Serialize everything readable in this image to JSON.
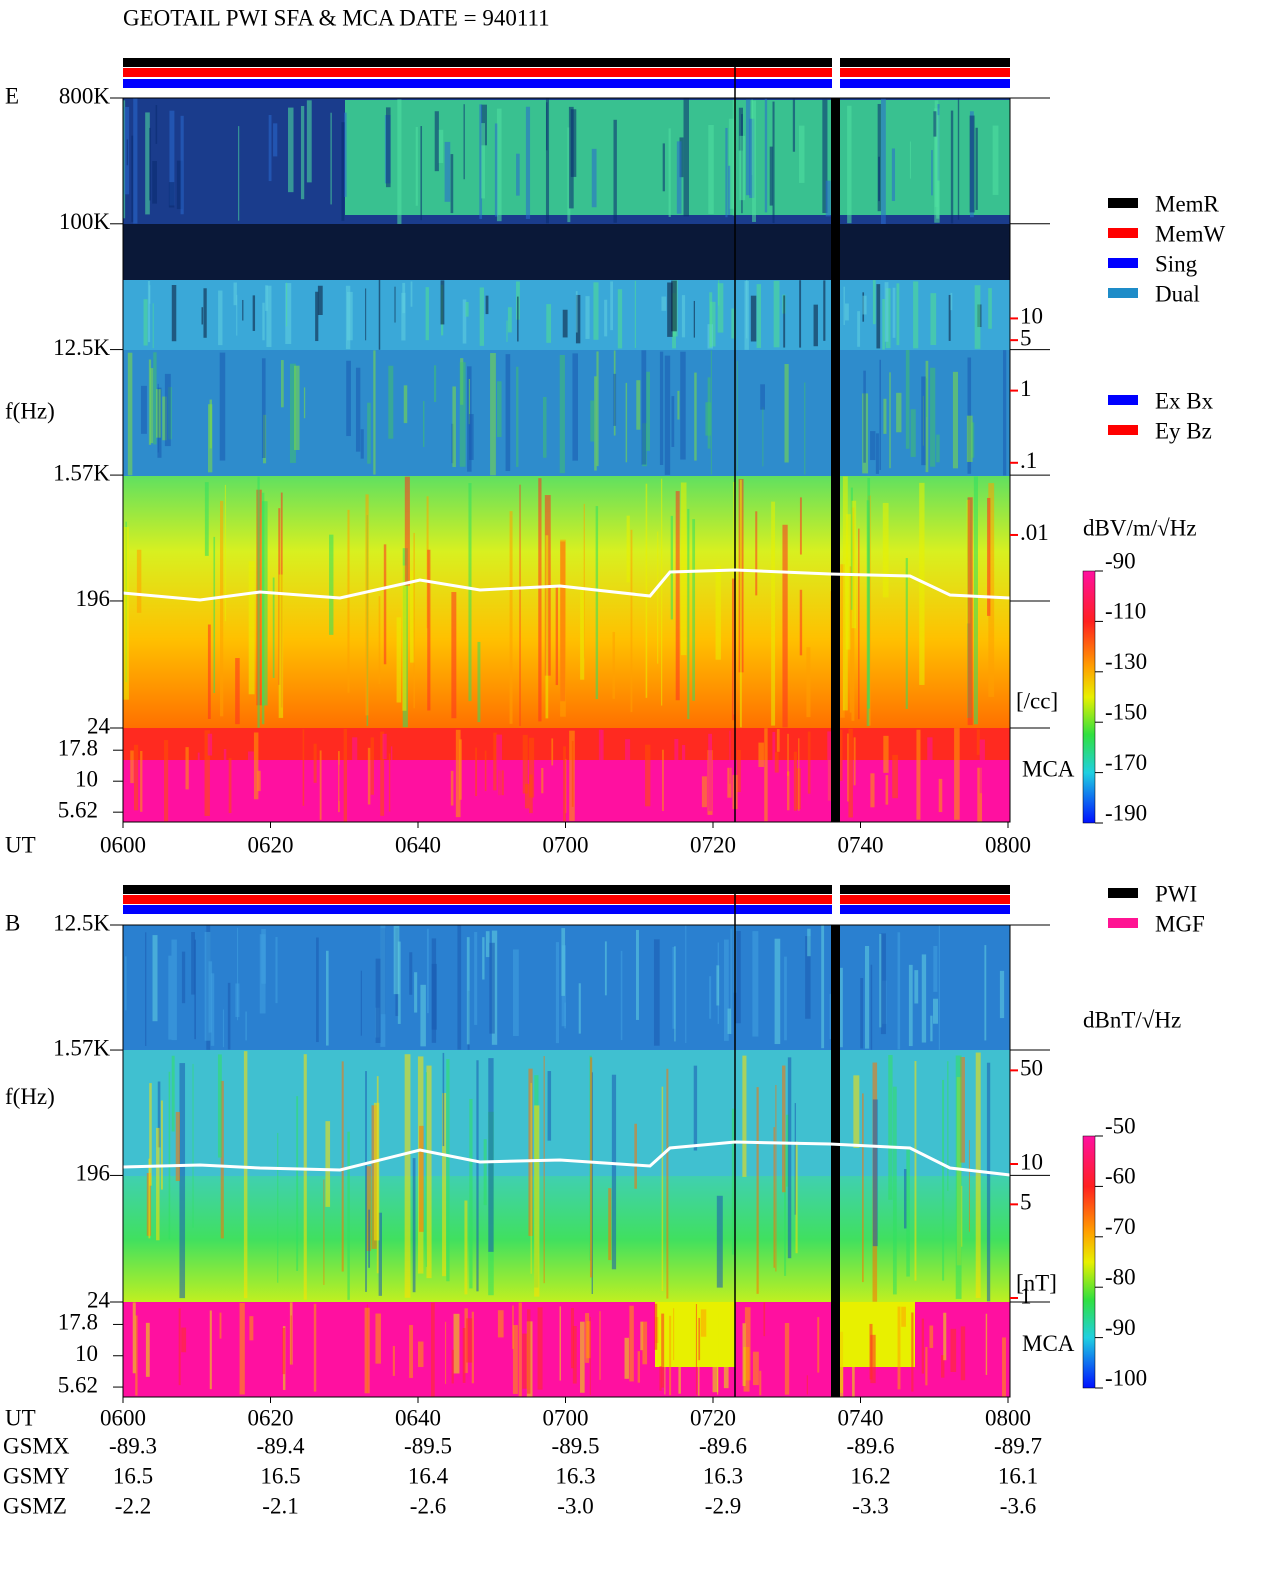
{
  "title": "GEOTAIL   PWI SFA & MCA   DATE = 940111",
  "chart_data": [
    {
      "type": "spectrogram",
      "panel_label": "E",
      "ylabel": "f(Hz)",
      "xlabel": "UT",
      "x_labels": [
        "0600",
        "0620",
        "0640",
        "0700",
        "0720",
        "0740",
        "0800"
      ],
      "yscale": "log",
      "ylim": [
        24,
        800000
      ],
      "yticks": [
        {
          "value": 800000,
          "label": "800K"
        },
        {
          "value": 100000,
          "label": "100K"
        },
        {
          "value": 12500,
          "label": "12.5K"
        },
        {
          "value": 1570,
          "label": "1.57K"
        },
        196,
        24
      ],
      "mca_label": "MCA",
      "mca_ylim": [
        4.68,
        26.9
      ],
      "mca_yticks": [
        17.8,
        10,
        5.62
      ],
      "y2scale": "log",
      "y2lim": [
        0.0045,
        18
      ],
      "y2label": "[/cc]",
      "y2color": "#ff0000",
      "y2ticks": [
        10,
        5,
        1,
        {
          "value": 0.1,
          "label": ".1"
        },
        {
          "value": 0.01,
          "label": ".01"
        }
      ],
      "clabel": "dBV/m/√Hz",
      "clim": [
        -190,
        -90
      ],
      "cticks": [
        -90,
        -110,
        -130,
        -150,
        -170,
        -190
      ],
      "legend": [
        {
          "name": "MemR",
          "color": "#000000"
        },
        {
          "name": "MemW",
          "color": "#ff0000"
        },
        {
          "name": "Sing",
          "color": "#0000ff"
        },
        {
          "name": "Dual",
          "color": "#1e8cc8"
        }
      ],
      "legend2": [
        {
          "name": "Ex Bx",
          "color": "#0000ff"
        },
        {
          "name": "Ey Bz",
          "color": "#ff0000"
        }
      ]
    },
    {
      "type": "spectrogram",
      "panel_label": "B",
      "ylabel": "f(Hz)",
      "xlabel": "UT",
      "x_labels": [
        "0600",
        "0620",
        "0640",
        "0700",
        "0720",
        "0740",
        "0800"
      ],
      "yscale": "log",
      "ylim": [
        24,
        12500
      ],
      "yticks": [
        {
          "value": 12500,
          "label": "12.5K"
        },
        {
          "value": 1570,
          "label": "1.57K"
        },
        196,
        24
      ],
      "mca_label": "MCA",
      "mca_ylim": [
        4.68,
        26.9
      ],
      "mca_yticks": [
        17.8,
        10,
        5.62
      ],
      "y2scale": "log",
      "y2lim": [
        1,
        64
      ],
      "y2label": "[nT]",
      "y2color": "#ff0000",
      "y2ticks": [
        50,
        10,
        5,
        1
      ],
      "clabel": "dBnT/√Hz",
      "clim": [
        -100,
        -50
      ],
      "cticks": [
        -50,
        -60,
        -70,
        -80,
        -90,
        -100
      ],
      "legend": [
        {
          "name": "PWI",
          "color": "#000000"
        },
        {
          "name": "MGF",
          "color": "#ff1493"
        }
      ]
    }
  ],
  "orbit": {
    "rows": [
      {
        "label": "GSMX",
        "values": [
          "-89.3",
          "-89.4",
          "-89.5",
          "-89.5",
          "-89.6",
          "-89.6",
          "-89.7"
        ]
      },
      {
        "label": "GSMY",
        "values": [
          "16.5",
          "16.5",
          "16.4",
          "16.3",
          "16.3",
          "16.2",
          "16.1"
        ]
      },
      {
        "label": "GSMZ",
        "values": [
          "-2.2",
          "-2.1",
          "-2.6",
          "-3.0",
          "-2.9",
          "-3.3",
          "-3.6"
        ]
      }
    ]
  }
}
